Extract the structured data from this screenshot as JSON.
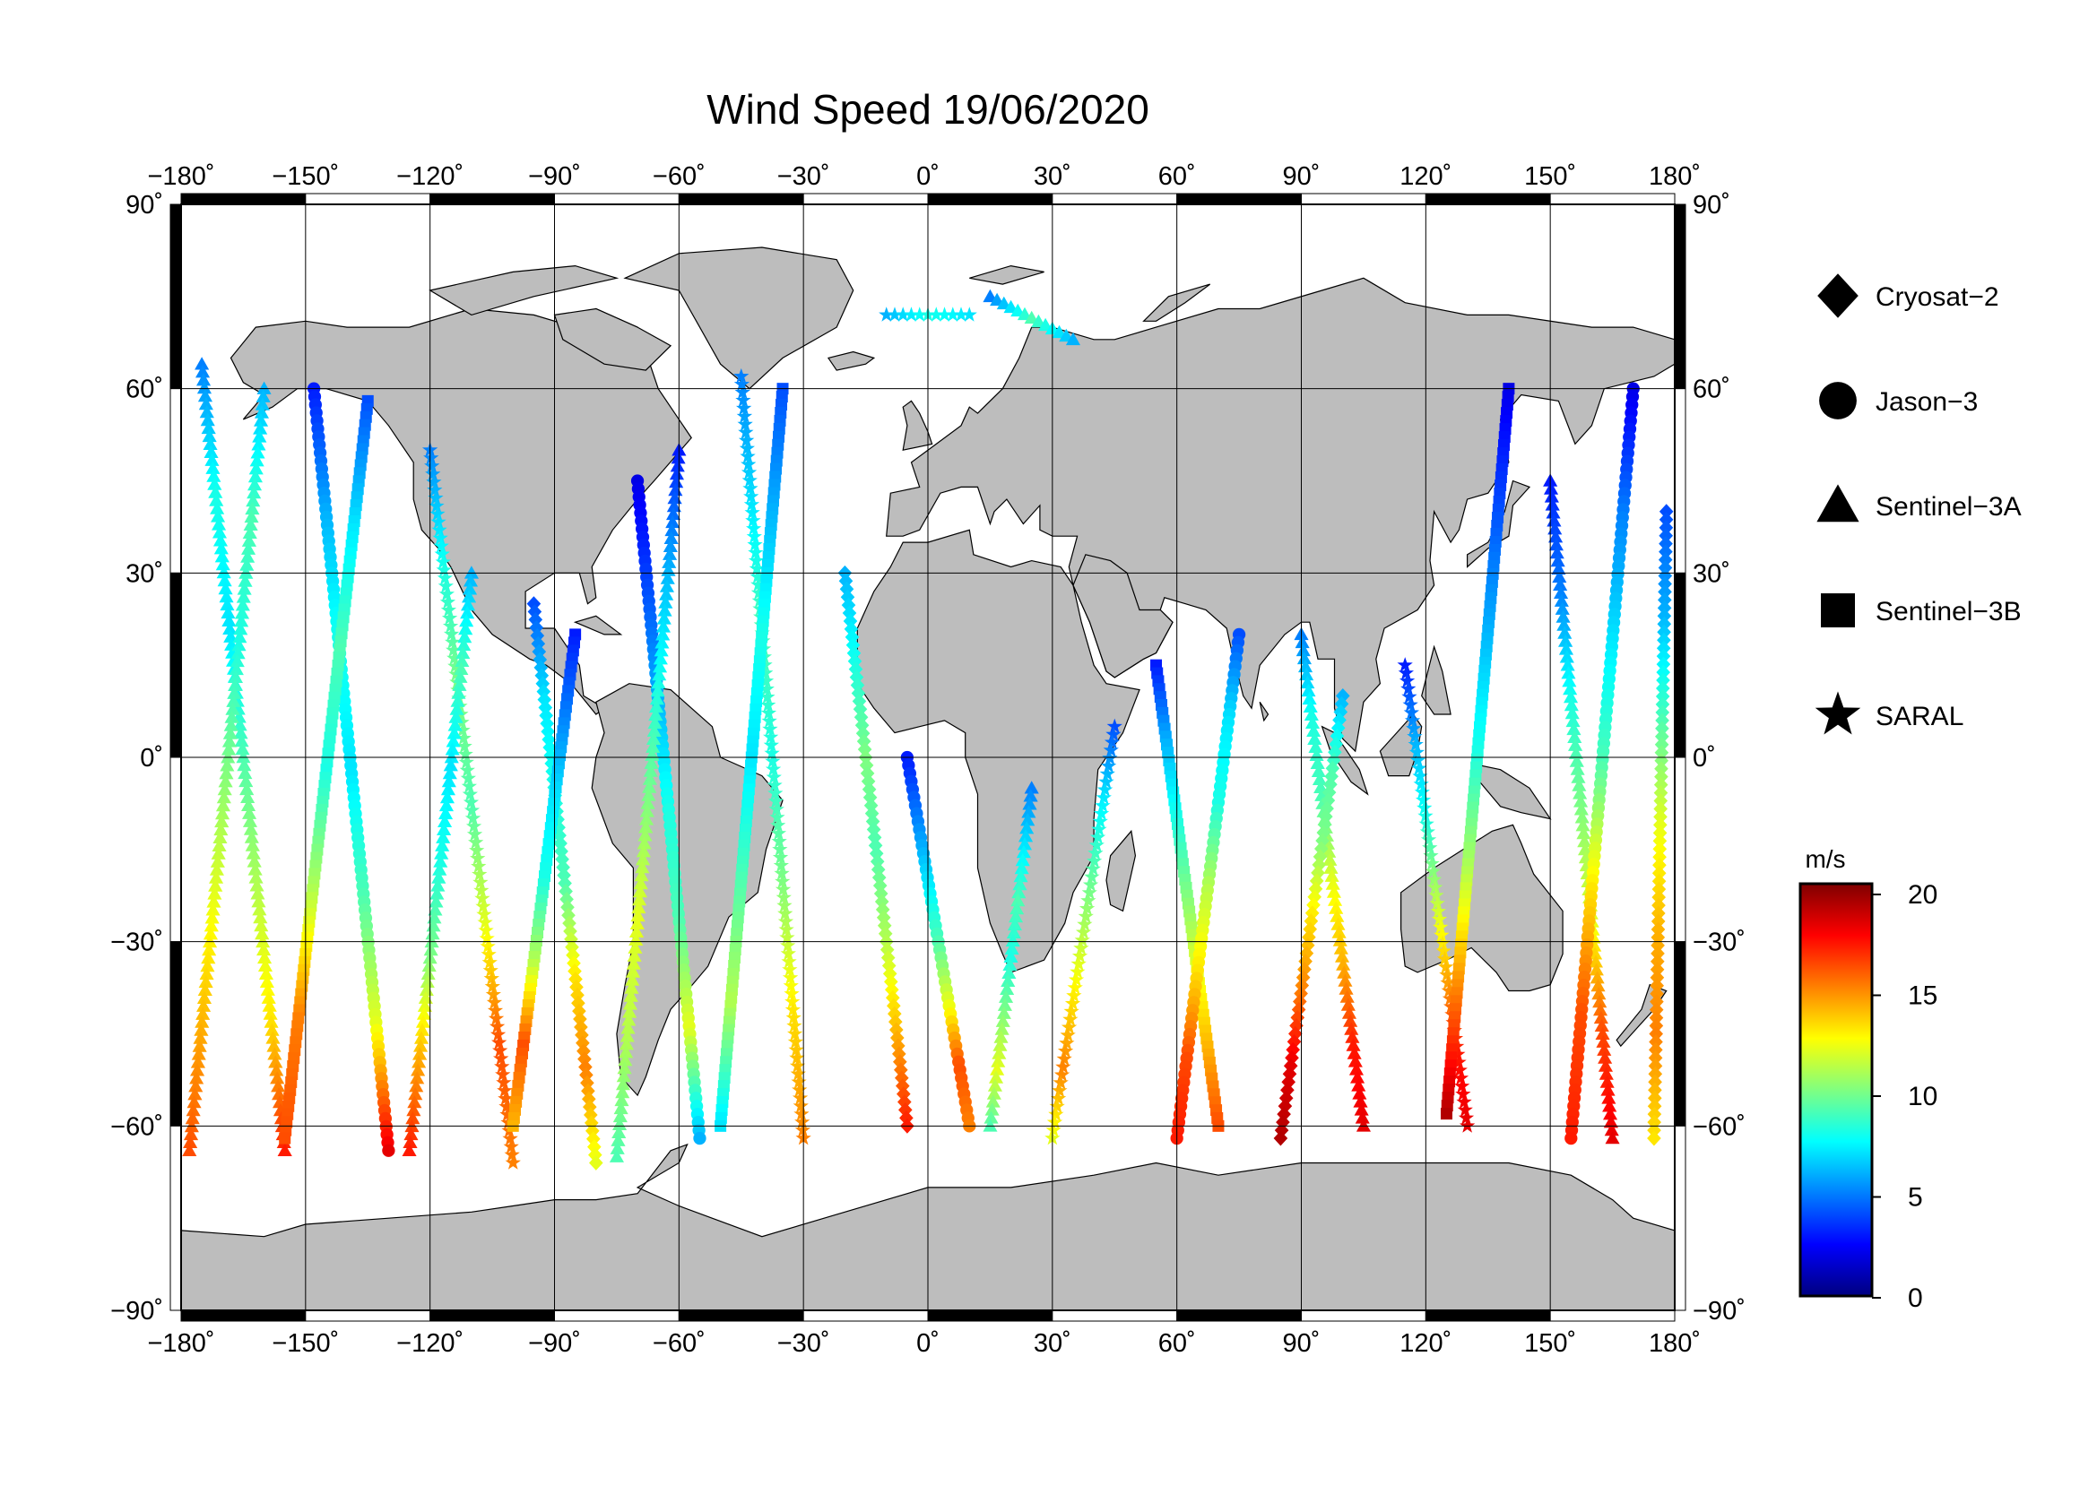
{
  "title": "Wind Speed 19/06/2020",
  "map": {
    "lon_range": [
      -180,
      180
    ],
    "lat_range": [
      -90,
      90
    ],
    "grid_lon": [
      -150,
      -120,
      -90,
      -60,
      -30,
      0,
      30,
      60,
      90,
      120,
      150
    ],
    "grid_lat": [
      -60,
      -30,
      0,
      30,
      60
    ],
    "lon_ticks": [
      "−180˚",
      "−150˚",
      "−120˚",
      "−90˚",
      "−60˚",
      "−30˚",
      "0˚",
      "30˚",
      "60˚",
      "90˚",
      "120˚",
      "150˚",
      "180˚"
    ],
    "lat_ticks": [
      "90˚",
      "60˚",
      "30˚",
      "0˚",
      "−30˚",
      "−60˚",
      "−90˚"
    ],
    "land_color": "#bdbdbd",
    "ocean_color": "#ffffff"
  },
  "legend": {
    "items": [
      {
        "label": "Cryosat−2",
        "marker": "diamond"
      },
      {
        "label": "Jason−3",
        "marker": "circle"
      },
      {
        "label": "Sentinel−3A",
        "marker": "triangle"
      },
      {
        "label": "Sentinel−3B",
        "marker": "square"
      },
      {
        "label": "SARAL",
        "marker": "star"
      }
    ]
  },
  "colorbar": {
    "unit": "m/s",
    "min": 0,
    "max": 20,
    "ticks": [
      "0",
      "5",
      "10",
      "15",
      "20"
    ],
    "stops": [
      "#00007f",
      "#0000ff",
      "#0080ff",
      "#00ffff",
      "#80ff80",
      "#ffff00",
      "#ff8000",
      "#ff0000",
      "#7f0000"
    ]
  },
  "chart_data": {
    "type": "scatter",
    "title": "Wind Speed 19/06/2020",
    "value_unit": "m/s",
    "value_range": [
      0,
      20
    ],
    "tracks": [
      {
        "mission": "Sentinel-3A",
        "start": [
          -175,
          64
        ],
        "end": [
          -155,
          -64
        ],
        "winds": [
          5,
          8,
          7,
          9,
          11,
          13,
          17
        ]
      },
      {
        "mission": "Sentinel-3A",
        "start": [
          -160,
          60
        ],
        "end": [
          -178,
          -64
        ],
        "winds": [
          6,
          9,
          8,
          10,
          12,
          14,
          16
        ]
      },
      {
        "mission": "Jason-3",
        "start": [
          -148,
          60
        ],
        "end": [
          -130,
          -64
        ],
        "winds": [
          3,
          6,
          8,
          7,
          9,
          12,
          18
        ]
      },
      {
        "mission": "Sentinel-3B",
        "start": [
          -135,
          58
        ],
        "end": [
          -155,
          -62
        ],
        "winds": [
          4,
          7,
          9,
          8,
          11,
          15,
          16
        ]
      },
      {
        "mission": "SARAL",
        "start": [
          -120,
          50
        ],
        "end": [
          -100,
          -66
        ],
        "winds": [
          5,
          8,
          10,
          9,
          12,
          16,
          15
        ]
      },
      {
        "mission": "Sentinel-3A",
        "start": [
          -110,
          30
        ],
        "end": [
          -125,
          -64
        ],
        "winds": [
          6,
          9,
          7,
          8,
          10,
          14,
          17
        ]
      },
      {
        "mission": "Cryosat-2",
        "start": [
          -95,
          25
        ],
        "end": [
          -80,
          -66
        ],
        "winds": [
          4,
          7,
          8,
          9,
          13,
          15,
          12
        ]
      },
      {
        "mission": "Sentinel-3B",
        "start": [
          -85,
          20
        ],
        "end": [
          -100,
          -60
        ],
        "winds": [
          3,
          5,
          7,
          8,
          11,
          16,
          14
        ]
      },
      {
        "mission": "Jason-3",
        "start": [
          -70,
          45
        ],
        "end": [
          -55,
          -62
        ],
        "winds": [
          2,
          4,
          6,
          8,
          9,
          12,
          6
        ]
      },
      {
        "mission": "Sentinel-3A",
        "start": [
          -60,
          50
        ],
        "end": [
          -75,
          -65
        ],
        "winds": [
          3,
          6,
          8,
          10,
          12,
          11,
          9
        ]
      },
      {
        "mission": "SARAL",
        "start": [
          -45,
          62
        ],
        "end": [
          -30,
          -62
        ],
        "winds": [
          5,
          7,
          9,
          8,
          10,
          13,
          15
        ]
      },
      {
        "mission": "Sentinel-3B",
        "start": [
          -35,
          60
        ],
        "end": [
          -50,
          -60
        ],
        "winds": [
          4,
          6,
          8,
          7,
          9,
          11,
          7
        ]
      },
      {
        "mission": "Cryosat-2",
        "start": [
          -20,
          30
        ],
        "end": [
          -5,
          -60
        ],
        "winds": [
          6,
          8,
          10,
          9,
          11,
          14,
          17
        ]
      },
      {
        "mission": "Jason-3",
        "start": [
          -5,
          0
        ],
        "end": [
          10,
          -60
        ],
        "winds": [
          3,
          5,
          7,
          9,
          12,
          16,
          15
        ]
      },
      {
        "mission": "Sentinel-3A",
        "start": [
          25,
          -5
        ],
        "end": [
          15,
          -60
        ],
        "winds": [
          5,
          7,
          9,
          8,
          10,
          12,
          9
        ]
      },
      {
        "mission": "SARAL",
        "start": [
          45,
          5
        ],
        "end": [
          30,
          -62
        ],
        "winds": [
          4,
          7,
          9,
          11,
          13,
          15,
          12
        ]
      },
      {
        "mission": "Sentinel-3B",
        "start": [
          55,
          15
        ],
        "end": [
          70,
          -60
        ],
        "winds": [
          3,
          6,
          8,
          10,
          12,
          14,
          16
        ]
      },
      {
        "mission": "Jason-3",
        "start": [
          75,
          20
        ],
        "end": [
          60,
          -62
        ],
        "winds": [
          4,
          7,
          8,
          11,
          13,
          16,
          17
        ]
      },
      {
        "mission": "Sentinel-3A",
        "start": [
          90,
          20
        ],
        "end": [
          105,
          -60
        ],
        "winds": [
          5,
          8,
          9,
          12,
          14,
          17,
          18
        ]
      },
      {
        "mission": "Cryosat-2",
        "start": [
          100,
          10
        ],
        "end": [
          85,
          -62
        ],
        "winds": [
          6,
          9,
          10,
          13,
          15,
          18,
          19
        ]
      },
      {
        "mission": "SARAL",
        "start": [
          115,
          15
        ],
        "end": [
          130,
          -60
        ],
        "winds": [
          3,
          6,
          8,
          11,
          14,
          17,
          18
        ]
      },
      {
        "mission": "Sentinel-3B",
        "start": [
          140,
          60
        ],
        "end": [
          125,
          -58
        ],
        "winds": [
          2,
          4,
          6,
          8,
          11,
          15,
          19
        ]
      },
      {
        "mission": "Sentinel-3A",
        "start": [
          150,
          45
        ],
        "end": [
          165,
          -62
        ],
        "winds": [
          3,
          5,
          8,
          10,
          12,
          16,
          18
        ]
      },
      {
        "mission": "Jason-3",
        "start": [
          170,
          60
        ],
        "end": [
          155,
          -62
        ],
        "winds": [
          2,
          5,
          7,
          9,
          13,
          16,
          17
        ]
      },
      {
        "mission": "Cryosat-2",
        "start": [
          178,
          40
        ],
        "end": [
          175,
          -62
        ],
        "winds": [
          4,
          6,
          9,
          12,
          14,
          15,
          13
        ]
      },
      {
        "mission": "SARAL",
        "start": [
          -10,
          72
        ],
        "end": [
          10,
          72
        ],
        "winds": [
          6,
          8,
          7
        ]
      },
      {
        "mission": "Sentinel-3A",
        "start": [
          15,
          75
        ],
        "end": [
          35,
          68
        ],
        "winds": [
          5,
          9,
          6
        ]
      }
    ]
  }
}
